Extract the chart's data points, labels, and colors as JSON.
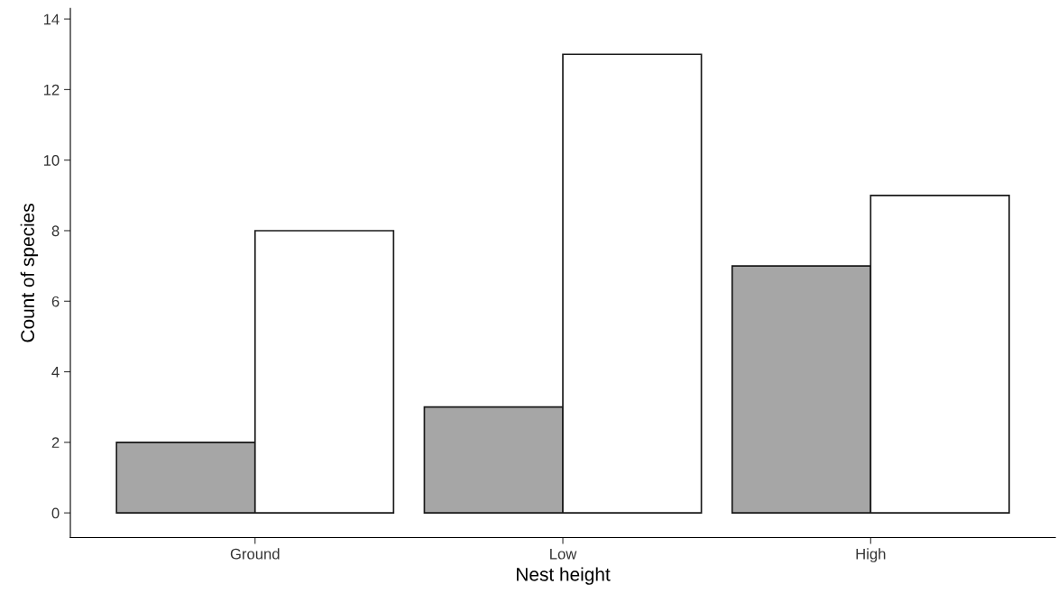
{
  "chart_data": {
    "type": "bar",
    "xlabel": "Nest height",
    "ylabel": "Count of species",
    "categories": [
      "Ground",
      "Low",
      "High"
    ],
    "series": [
      {
        "color": "#a6a6a6",
        "values": [
          2,
          3,
          7
        ]
      },
      {
        "color": "#ffffff",
        "values": [
          8,
          13,
          9
        ]
      }
    ],
    "ylim": [
      -0.7,
      14.3
    ],
    "yticks": [
      0,
      2,
      4,
      6,
      8,
      10,
      12,
      14
    ],
    "grid": false,
    "legend": false
  }
}
